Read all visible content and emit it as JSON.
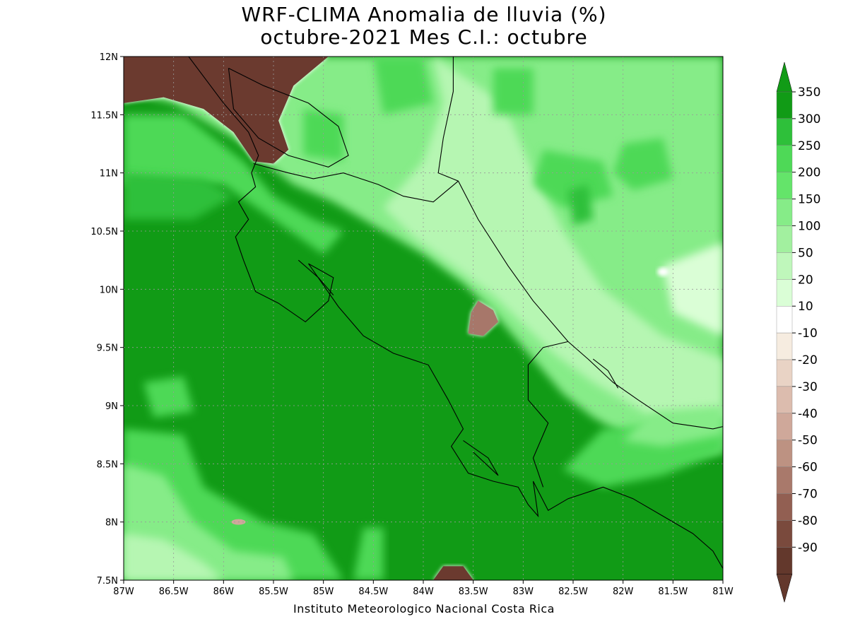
{
  "title_line1": "WRF-CLIMA Anomalia de lluvia (%)",
  "title_line2": "octubre-2021 Mes C.I.: octubre",
  "credit": "Instituto Meteorologico Nacional Costa Rica",
  "map": {
    "lon_range": [
      -87,
      -81
    ],
    "lat_range": [
      7.5,
      12
    ],
    "lon_ticks": [
      {
        "value": -87,
        "label": "87W"
      },
      {
        "value": -86.5,
        "label": "86.5W"
      },
      {
        "value": -86,
        "label": "86W"
      },
      {
        "value": -85.5,
        "label": "85.5W"
      },
      {
        "value": -85,
        "label": "85W"
      },
      {
        "value": -84.5,
        "label": "84.5W"
      },
      {
        "value": -84,
        "label": "84W"
      },
      {
        "value": -83.5,
        "label": "83.5W"
      },
      {
        "value": -83,
        "label": "83W"
      },
      {
        "value": -82.5,
        "label": "82.5W"
      },
      {
        "value": -82,
        "label": "82W"
      },
      {
        "value": -81.5,
        "label": "81.5W"
      },
      {
        "value": -81,
        "label": "81W"
      }
    ],
    "lat_ticks": [
      {
        "value": 12,
        "label": "12N"
      },
      {
        "value": 11.5,
        "label": "11.5N"
      },
      {
        "value": 11,
        "label": "11N"
      },
      {
        "value": 10.5,
        "label": "10.5N"
      },
      {
        "value": 10,
        "label": "10N"
      },
      {
        "value": 9.5,
        "label": "9.5N"
      },
      {
        "value": 9,
        "label": "9N"
      },
      {
        "value": 8.5,
        "label": "8.5N"
      },
      {
        "value": 8,
        "label": "8N"
      },
      {
        "value": 7.5,
        "label": "7.5N"
      }
    ],
    "grid": true,
    "colors": {
      "dark_green": "#119b16",
      "green_300": "#2ec03a",
      "green_250": "#4ed957",
      "green_200": "#64e46a",
      "green_150": "#86ec88",
      "light_green": "#b6f6b2",
      "pale_green": "#dafed6",
      "brown_dark": "#6b3a2f",
      "brown_mid": "#a7776a",
      "brown_light": "#cfa89a",
      "white": "#ffffff",
      "coast": "#000000"
    }
  },
  "legend": {
    "labels": [
      "350",
      "300",
      "250",
      "200",
      "150",
      "100",
      "50",
      "20",
      "10",
      "-10",
      "-20",
      "-30",
      "-40",
      "-50",
      "-60",
      "-70",
      "-80",
      "-90"
    ],
    "colors": [
      "#119b16",
      "#2ec03a",
      "#4ed957",
      "#64e46a",
      "#86ec88",
      "#a2f09f",
      "#bff7bb",
      "#dafed6",
      "#ffffff",
      "#f6ece0",
      "#e9d3c5",
      "#dcbcae",
      "#cfa89a",
      "#bd9282",
      "#a9796b",
      "#925f52",
      "#7a4a3d",
      "#63382c"
    ],
    "top_arrow_color": "#119b16",
    "bottom_arrow_color": "#63382c"
  }
}
